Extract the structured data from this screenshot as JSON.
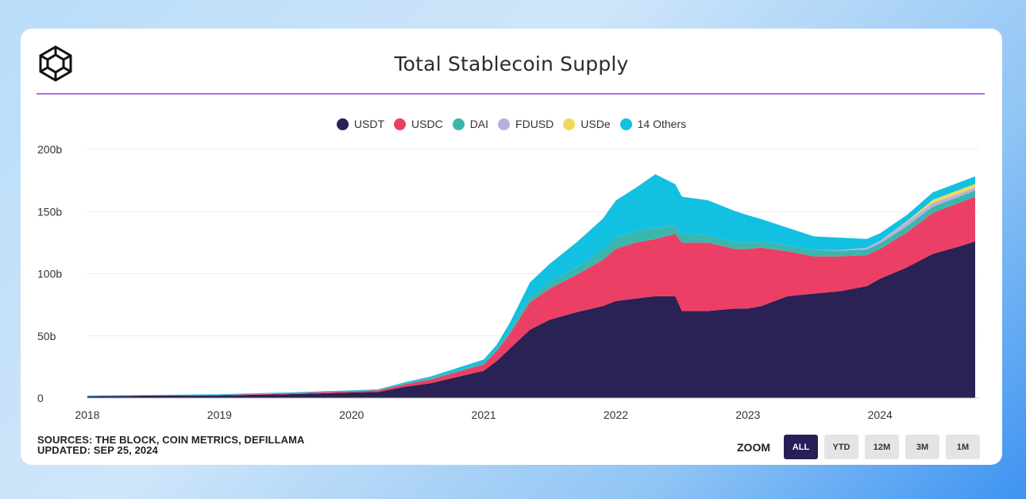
{
  "header": {
    "title": "Total Stablecoin Supply"
  },
  "footer": {
    "sources": "SOURCES: THE BLOCK, COIN METRICS, DEFILLAMA",
    "updated": "UPDATED: SEP 25, 2024"
  },
  "zoom": {
    "label": "ZOOM",
    "buttons": [
      "ALL",
      "YTD",
      "12M",
      "3M",
      "1M"
    ],
    "active": "ALL"
  },
  "colors": {
    "USDT": "#2a2154",
    "USDC": "#ec3f65",
    "DAI": "#3bb6ad",
    "FDUSD": "#b7b0de",
    "USDe": "#f2d85a",
    "Others": "#12c0e2",
    "accent": "#b06ee6"
  },
  "chart_data": {
    "type": "area",
    "stacked": true,
    "title": "Total Stablecoin Supply",
    "xlabel": "",
    "ylabel": "",
    "ylim": [
      0,
      200
    ],
    "xlim": [
      2018.0,
      2024.75
    ],
    "x_ticks": [
      2018,
      2019,
      2020,
      2021,
      2022,
      2023,
      2024
    ],
    "x_tick_labels": [
      "2018",
      "2019",
      "2020",
      "2021",
      "2022",
      "2023",
      "2024"
    ],
    "y_ticks": [
      0,
      50,
      100,
      150,
      200
    ],
    "y_tick_labels": [
      "0",
      "50b",
      "100b",
      "150b",
      "200b"
    ],
    "unit": "billion USD",
    "legend": [
      "USDT",
      "USDC",
      "DAI",
      "FDUSD",
      "USDe",
      "14 Others"
    ],
    "legend_position": "top-center",
    "x": [
      2018.0,
      2018.5,
      2019.0,
      2019.5,
      2020.0,
      2020.2,
      2020.4,
      2020.6,
      2020.8,
      2021.0,
      2021.1,
      2021.2,
      2021.35,
      2021.5,
      2021.7,
      2021.9,
      2022.0,
      2022.15,
      2022.3,
      2022.45,
      2022.5,
      2022.7,
      2022.9,
      2023.0,
      2023.1,
      2023.3,
      2023.5,
      2023.7,
      2023.9,
      2024.0,
      2024.2,
      2024.4,
      2024.6,
      2024.72
    ],
    "series": [
      {
        "name": "USDT",
        "values": [
          1.5,
          2.0,
          2.2,
          3.0,
          4.5,
          5.0,
          9.0,
          12.0,
          17.0,
          22.0,
          30.0,
          40.0,
          55.0,
          63.0,
          69.0,
          74.0,
          78.0,
          80.0,
          82.0,
          82.0,
          70.0,
          70.0,
          72.0,
          72.0,
          74.0,
          82.0,
          84.0,
          86.0,
          90.0,
          96.0,
          105.0,
          116.0,
          122.0,
          126.0
        ]
      },
      {
        "name": "USDC",
        "values": [
          0.0,
          0.0,
          0.3,
          0.8,
          1.0,
          1.2,
          2.0,
          3.0,
          4.0,
          5.0,
          8.0,
          12.0,
          22.0,
          25.0,
          30.0,
          37.0,
          42.0,
          45.0,
          46.0,
          50.0,
          55.0,
          55.0,
          48.0,
          48.0,
          47.0,
          36.0,
          30.0,
          28.0,
          25.0,
          24.0,
          28.0,
          33.0,
          35.0,
          36.0
        ]
      },
      {
        "name": "DAI",
        "values": [
          0.0,
          0.0,
          0.1,
          0.2,
          0.2,
          0.3,
          0.6,
          0.9,
          1.2,
          1.5,
          2.0,
          3.0,
          4.0,
          5.0,
          6.0,
          8.0,
          9.0,
          9.0,
          9.0,
          7.0,
          7.0,
          6.0,
          5.5,
          5.0,
          5.0,
          5.0,
          5.0,
          4.5,
          4.5,
          4.5,
          5.0,
          5.0,
          5.0,
          5.0
        ]
      },
      {
        "name": "FDUSD",
        "values": [
          0,
          0,
          0,
          0,
          0,
          0,
          0,
          0,
          0,
          0,
          0,
          0,
          0,
          0,
          0,
          0,
          0,
          0,
          0,
          0,
          0,
          0,
          0,
          0,
          0,
          0,
          0,
          0.5,
          1.5,
          2.0,
          3.5,
          3.0,
          2.5,
          2.5
        ]
      },
      {
        "name": "USDe",
        "values": [
          0,
          0,
          0,
          0,
          0,
          0,
          0,
          0,
          0,
          0,
          0,
          0,
          0,
          0,
          0,
          0,
          0,
          0,
          0,
          0,
          0,
          0,
          0,
          0,
          0,
          0,
          0,
          0,
          0,
          0,
          0.5,
          2.5,
          3.0,
          2.8
        ]
      },
      {
        "name": "14 Others",
        "values": [
          0.5,
          0.5,
          0.5,
          0.5,
          0.5,
          0.5,
          1.0,
          1.5,
          2.0,
          2.5,
          3.0,
          6.0,
          12.0,
          15.0,
          20.0,
          25.0,
          30.0,
          35.0,
          43.0,
          33.0,
          30.0,
          28.0,
          25.0,
          22.0,
          18.0,
          14.0,
          11.0,
          10.0,
          7.0,
          6.0,
          5.0,
          6.0,
          6.0,
          6.0
        ]
      }
    ]
  }
}
